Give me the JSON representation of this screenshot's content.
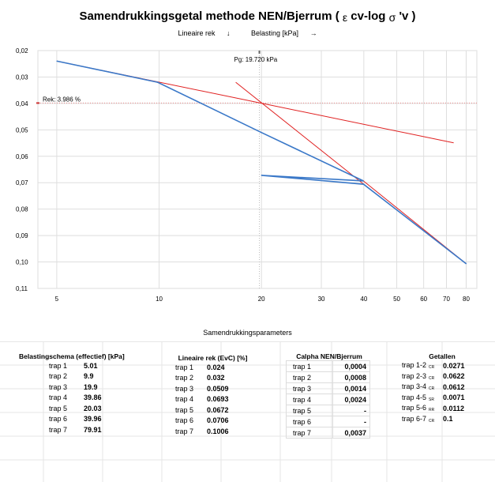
{
  "title": {
    "main": "Samendrukkingsgetal methode NEN/Bjerrum (",
    "eps": "ε",
    "mid": " cv-log ",
    "sigma": "σ",
    "end": " 'v )"
  },
  "legend": {
    "series1": "Lineaire rek",
    "series1_arrow": "↓",
    "series2": "Belasting [kPa]",
    "series2_arrow": "→"
  },
  "chart_data": {
    "type": "line",
    "x_scale": "log",
    "xlim": [
      4.4,
      86
    ],
    "ylim": [
      0.02,
      0.11
    ],
    "y_inverted": true,
    "x_ticks": [
      5,
      10,
      20,
      30,
      40,
      50,
      60,
      70,
      80
    ],
    "y_ticks": [
      "0,02",
      "0,03",
      "0,04",
      "0,05",
      "0,06",
      "0,07",
      "0,08",
      "0,09",
      "0,10",
      "0,11"
    ],
    "grid": true,
    "series": [
      {
        "color": "#3a78c8",
        "points": [
          [
            5.01,
            0.024
          ],
          [
            9.9,
            0.032
          ],
          [
            19.9,
            0.0509
          ],
          [
            39.86,
            0.0693
          ],
          [
            20.03,
            0.0672
          ],
          [
            39.96,
            0.0706
          ],
          [
            79.91,
            0.1006
          ]
        ]
      }
    ],
    "construction_lines": {
      "color": "#e02020",
      "lines": [
        [
          [
            5.01,
            0.024
          ],
          [
            73.5,
            0.0549
          ]
        ],
        [
          [
            16.8,
            0.032
          ],
          [
            40.0,
            0.0706
          ]
        ],
        [
          [
            39.86,
            0.0693
          ],
          [
            79.91,
            0.1006
          ]
        ]
      ]
    },
    "annotations": {
      "pg_label": "Pg: 19.720 kPa",
      "pg_value": 19.72,
      "rek_label": "Rek: 3.986 %",
      "rek_value": 0.03986
    }
  },
  "params_title": "Samendrukkingsparameters",
  "belasting": {
    "header": "Belastingschema (effectief) [kPa]",
    "rows": [
      {
        "label": "trap 1",
        "value": "5.01"
      },
      {
        "label": "trap 2",
        "value": "9.9"
      },
      {
        "label": "trap 3",
        "value": "19.9"
      },
      {
        "label": "trap 4",
        "value": "39.86"
      },
      {
        "label": "trap 5",
        "value": "20.03"
      },
      {
        "label": "trap 6",
        "value": "39.96"
      },
      {
        "label": "trap 7",
        "value": "79.91"
      }
    ]
  },
  "rek": {
    "header": "Lineaire rek (EvC) [%]",
    "rows": [
      {
        "label": "trap 1",
        "value": "0.024"
      },
      {
        "label": "trap 2",
        "value": "0.032"
      },
      {
        "label": "trap 3",
        "value": "0.0509"
      },
      {
        "label": "trap 4",
        "value": "0.0693"
      },
      {
        "label": "trap 5",
        "value": "0.0672"
      },
      {
        "label": "trap 6",
        "value": "0.0706"
      },
      {
        "label": "trap 7",
        "value": "0.1006"
      }
    ]
  },
  "calpha": {
    "header": "Calpha NEN/Bjerrum",
    "rows": [
      {
        "label": "trap 1",
        "value": "0,0004"
      },
      {
        "label": "trap 2",
        "value": "0,0008"
      },
      {
        "label": "trap 3",
        "value": "0,0014"
      },
      {
        "label": "trap 4",
        "value": "0,0024"
      },
      {
        "label": "trap 5",
        "value": "-"
      },
      {
        "label": "trap 6",
        "value": "-"
      },
      {
        "label": "trap 7",
        "value": "0,0037"
      }
    ]
  },
  "getallen": {
    "header": "Getallen",
    "rows": [
      {
        "label": "trap 1-2",
        "sub": "CR",
        "value": "0.0271"
      },
      {
        "label": "trap 2-3",
        "sub": "CR",
        "value": "0.0622"
      },
      {
        "label": "trap 3-4",
        "sub": "CR",
        "value": "0.0612"
      },
      {
        "label": "trap 4-5",
        "sub": "SR",
        "value": "0.0071"
      },
      {
        "label": "trap 5-6",
        "sub": "RR",
        "value": "0.0112"
      },
      {
        "label": "trap 6-7",
        "sub": "CR",
        "value": "0.1"
      }
    ]
  }
}
